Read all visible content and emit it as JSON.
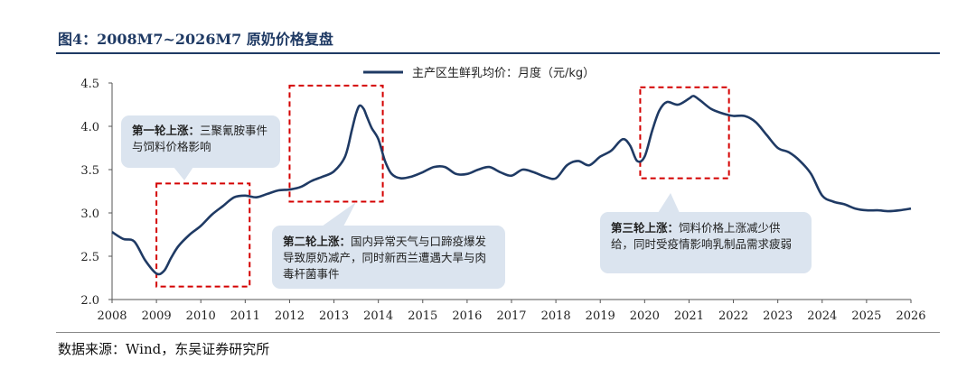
{
  "figure_title": "图4：2008M7~2026M7 原奶价格复盘",
  "source": "数据来源：Wind，东吴证券研究所",
  "colors": {
    "line": "#1f3a64",
    "box": "#d40000",
    "callout_bg": "#dbe4ef",
    "title": "#1f3a64"
  },
  "annotations": [
    {
      "title": "第一轮上涨：",
      "text": "三聚氰胺事件与饲料价格影响"
    },
    {
      "title": "第二轮上涨：",
      "text": "国内异常天气与口蹄疫爆发导致原奶减产，同时新西兰遭遇大旱与肉毒杆菌事件"
    },
    {
      "title": "第三轮上涨：",
      "text": "饲料价格上涨减少供给，同时受疫情影响乳制品需求疲弱"
    }
  ],
  "chart_data": {
    "type": "line",
    "title": "",
    "legend": "主产区生鲜乳均价：月度（元/kg）",
    "legend_position": "top-center",
    "xlabel": "",
    "ylabel": "",
    "xlim": [
      2008,
      2026
    ],
    "ylim": [
      2.0,
      4.5
    ],
    "x_ticks": [
      "2008",
      "2009",
      "2010",
      "2011",
      "2012",
      "2013",
      "2014",
      "2015",
      "2016",
      "2017",
      "2018",
      "2019",
      "2020",
      "2021",
      "2022",
      "2023",
      "2024",
      "2025",
      "2026"
    ],
    "y_ticks": [
      "2.0",
      "2.5",
      "3.0",
      "3.5",
      "4.0",
      "4.5"
    ],
    "grid": false,
    "highlight_ranges": [
      {
        "x": [
          2009.0,
          2011.1
        ],
        "y": [
          2.15,
          3.34
        ]
      },
      {
        "x": [
          2012.0,
          2014.1
        ],
        "y": [
          3.13,
          4.47
        ]
      },
      {
        "x": [
          2019.9,
          2021.9
        ],
        "y": [
          3.4,
          4.45
        ]
      }
    ],
    "series": [
      {
        "name": "主产区生鲜乳均价：月度（元/kg）",
        "x": [
          2008.0,
          2008.25,
          2008.5,
          2008.75,
          2009.0,
          2009.17,
          2009.33,
          2009.5,
          2009.75,
          2010.0,
          2010.25,
          2010.5,
          2010.75,
          2011.0,
          2011.25,
          2011.5,
          2011.75,
          2012.0,
          2012.25,
          2012.5,
          2012.75,
          2013.0,
          2013.25,
          2013.4,
          2013.5,
          2013.58,
          2013.67,
          2013.75,
          2013.85,
          2014.0,
          2014.15,
          2014.3,
          2014.5,
          2014.75,
          2015.0,
          2015.25,
          2015.5,
          2015.75,
          2016.0,
          2016.25,
          2016.5,
          2016.75,
          2017.0,
          2017.25,
          2017.5,
          2017.75,
          2018.0,
          2018.25,
          2018.5,
          2018.75,
          2019.0,
          2019.25,
          2019.5,
          2019.67,
          2019.83,
          2020.0,
          2020.17,
          2020.33,
          2020.5,
          2020.75,
          2021.0,
          2021.1,
          2021.25,
          2021.5,
          2021.75,
          2022.0,
          2022.25,
          2022.5,
          2022.75,
          2023.0,
          2023.25,
          2023.5,
          2023.75,
          2024.0,
          2024.25,
          2024.5,
          2024.75,
          2025.0,
          2025.25,
          2025.5,
          2025.75,
          2026.0
        ],
        "y": [
          2.78,
          2.7,
          2.67,
          2.45,
          2.3,
          2.33,
          2.48,
          2.62,
          2.75,
          2.85,
          2.98,
          3.08,
          3.18,
          3.2,
          3.18,
          3.22,
          3.26,
          3.27,
          3.3,
          3.37,
          3.42,
          3.48,
          3.65,
          3.95,
          4.15,
          4.24,
          4.2,
          4.1,
          3.98,
          3.85,
          3.6,
          3.45,
          3.4,
          3.42,
          3.47,
          3.53,
          3.53,
          3.45,
          3.45,
          3.5,
          3.53,
          3.47,
          3.43,
          3.5,
          3.47,
          3.42,
          3.4,
          3.55,
          3.6,
          3.55,
          3.65,
          3.72,
          3.85,
          3.78,
          3.6,
          3.65,
          3.95,
          4.18,
          4.28,
          4.25,
          4.32,
          4.35,
          4.3,
          4.2,
          4.15,
          4.12,
          4.12,
          4.05,
          3.9,
          3.75,
          3.7,
          3.6,
          3.45,
          3.2,
          3.13,
          3.1,
          3.05,
          3.03,
          3.03,
          3.02,
          3.03,
          3.05
        ]
      }
    ]
  }
}
